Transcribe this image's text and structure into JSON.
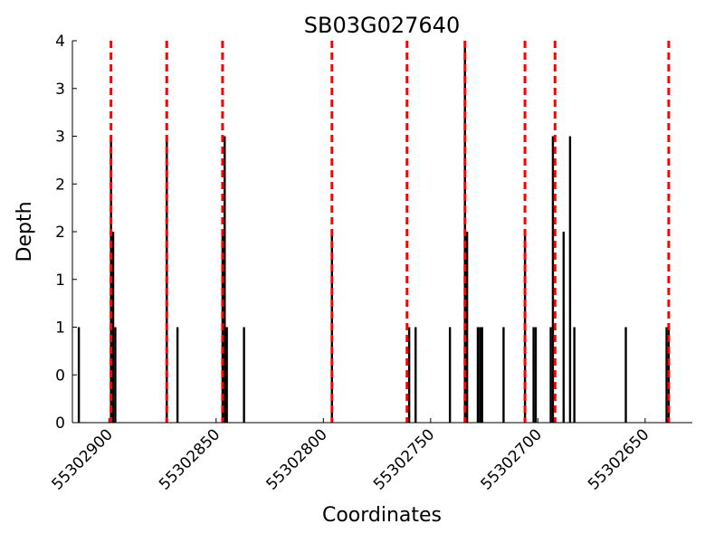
{
  "chart_data": {
    "type": "bar",
    "title": "SB03G027640",
    "xlabel": "Coordinates",
    "ylabel": "Depth",
    "x_axis_reversed": true,
    "xlim": [
      55302917,
      55302628
    ],
    "ylim": [
      0,
      4
    ],
    "yticks": [
      0,
      0.5,
      1,
      1.5,
      2,
      2.5,
      3,
      3.5,
      4
    ],
    "ytick_labels": [
      "0",
      "0",
      "1",
      "1",
      "2",
      "2",
      "3",
      "3",
      "4"
    ],
    "xticks": [
      55302900,
      55302850,
      55302800,
      55302750,
      55302700,
      55302650
    ],
    "xtick_labels": [
      "55302900",
      "55302850",
      "55302800",
      "55302750",
      "55302700",
      "55302650"
    ],
    "grid": false,
    "bar_color": "#000000",
    "marker_color": "#ff0000",
    "series": [
      {
        "x": [
          55302914,
          55302899,
          55302898,
          55302897,
          55302873,
          55302868,
          55302847,
          55302846,
          55302845,
          55302837,
          55302796,
          55302760,
          55302757,
          55302741,
          55302734,
          55302733,
          55302728,
          55302727,
          55302726,
          55302716,
          55302706,
          55302702,
          55302701,
          55302694,
          55302693,
          55302688,
          55302685,
          55302683,
          55302659,
          55302640,
          55302639
        ],
        "values": [
          1,
          3,
          2,
          1,
          3,
          1,
          2,
          3,
          1,
          1,
          2,
          1,
          1,
          1,
          4,
          2,
          1,
          1,
          1,
          1,
          2,
          1,
          1,
          1,
          3,
          2,
          3,
          1,
          1,
          1,
          1
        ]
      }
    ],
    "vlines": [
      55302899,
      55302873,
      55302847,
      55302796,
      55302761,
      55302734,
      55302706,
      55302692,
      55302639
    ]
  }
}
